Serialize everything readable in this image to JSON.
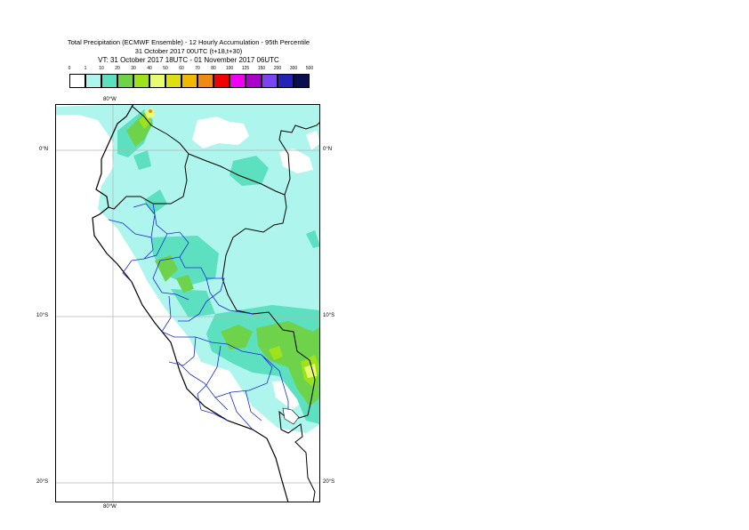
{
  "title": {
    "line1": "Total Precipitation (ECMWF Ensemble) - 12 Hourly Accumulation - 95th Percentile",
    "line2": "31 October 2017 00UTC (t+18,t+30)",
    "line3": "VT: 31 October 2017 18UTC - 01 November 2017 06UTC"
  },
  "legend": {
    "thresholds": [
      "0",
      "1",
      "10",
      "20",
      "30",
      "40",
      "50",
      "60",
      "70",
      "80",
      "100",
      "125",
      "150",
      "200",
      "300",
      "500"
    ],
    "colors": [
      "#ffffff",
      "#aef5ee",
      "#5ce0c0",
      "#6ed24a",
      "#9ee21c",
      "#e8fc72",
      "#dede14",
      "#f0b800",
      "#f08a14",
      "#f00000",
      "#f000f0",
      "#aa00cc",
      "#7a44f0",
      "#2424b4",
      "#0c0c50"
    ]
  },
  "map": {
    "lat_labels": [
      "0°N",
      "10°S",
      "20°S"
    ],
    "lon_labels": [
      "80°W",
      "80°W"
    ],
    "ocean_color": "#ffffff",
    "base_precip_color": "#aef5ee"
  }
}
